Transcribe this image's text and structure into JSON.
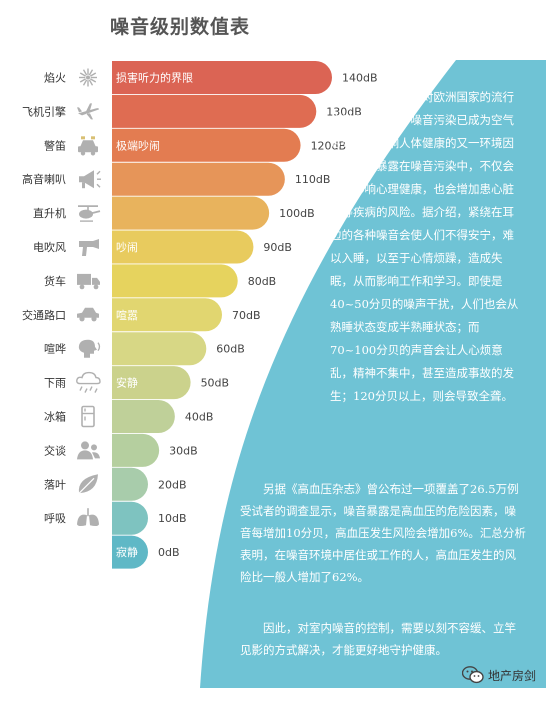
{
  "title": "噪音级别数值表",
  "chart_data": {
    "type": "bar",
    "orientation": "horizontal",
    "title": "噪音级别数值表",
    "unit": "dB",
    "xlim": [
      0,
      140
    ],
    "grid": false,
    "categories": [
      "焰火",
      "飞机引擎",
      "警笛",
      "高音喇叭",
      "直升机",
      "电吹风",
      "货车",
      "交通路口",
      "喧哗",
      "下雨",
      "冰箱",
      "交谈",
      "落叶",
      "呼吸",
      ""
    ],
    "values": [
      140,
      130,
      120,
      110,
      100,
      90,
      80,
      70,
      60,
      50,
      40,
      30,
      20,
      10,
      0
    ],
    "value_labels": [
      "140dB",
      "130dB",
      "120dB",
      "110dB",
      "100dB",
      "90dB",
      "80dB",
      "70dB",
      "60dB",
      "50dB",
      "40dB",
      "30dB",
      "20dB",
      "10dB",
      "0dB"
    ],
    "bar_labels": [
      "损害听力的界限",
      "",
      "极端吵闹",
      "",
      "",
      "吵闹",
      "",
      "喧嚣",
      "",
      "安静",
      "",
      "",
      "",
      "",
      "寂静"
    ],
    "icons": [
      "fireworks-icon",
      "airplane-icon",
      "police-car-icon",
      "megaphone-icon",
      "helicopter-icon",
      "hairdryer-icon",
      "truck-icon",
      "car-icon",
      "talking-head-icon",
      "rain-cloud-icon",
      "fridge-icon",
      "people-icon",
      "leaf-icon",
      "lungs-icon",
      ""
    ],
    "colors": [
      "#db6454",
      "#df6c52",
      "#e37c51",
      "#e69559",
      "#e8b35d",
      "#e8cb5e",
      "#e6d35e",
      "#e1d670",
      "#d7d785",
      "#cbd28c",
      "#bfd099",
      "#b5cf9f",
      "#a8ccab",
      "#7ec3c0",
      "#5fb8c6"
    ]
  },
  "text": {
    "paragraph1": "根据世卫组织对欧洲国家的流行病学研究显示，噪音污染已成为空气污染之后影响人体健康的又一环境因素。过度暴露在噪音污染中，不仅会严重影响心理健康，也会增加患心脏病等疾病的风险。据介绍，紧绕在耳边的各种噪音会使人们不得安宁，难以入睡，以至于心情烦躁，造成失眠，从而影响工作和学习。即使是40~50分贝的噪声干扰，人们也会从熟睡状态变成半熟睡状态；而70~100分贝的声音会让人心烦意乱，精神不集中，甚至造成事故的发生；120分贝以上，则会导致全聋。",
    "paragraph2": "另据《高血压杂志》曾公布过一项覆盖了26.5万例受试者的调查显示，噪音暴露是高血压的危险因素，噪音每增加10分贝，高血压发生风险会增加6%。汇总分析表明，在噪音环境中居住或工作的人，高血压发生的风险比一般人增加了62%。",
    "paragraph3": "因此，对室内噪音的控制，需要以刻不容缓、立竿见影的方式解决，才能更好地守护健康。"
  },
  "watermark": {
    "label": "地产房剑",
    "icon": "wechat-icon"
  },
  "colors": {
    "panel": "#6fc3d5",
    "text_on_panel": "#ffffff",
    "category_text": "#333333",
    "value_text": "#444444",
    "icon_gray": "#b0b0b0"
  }
}
